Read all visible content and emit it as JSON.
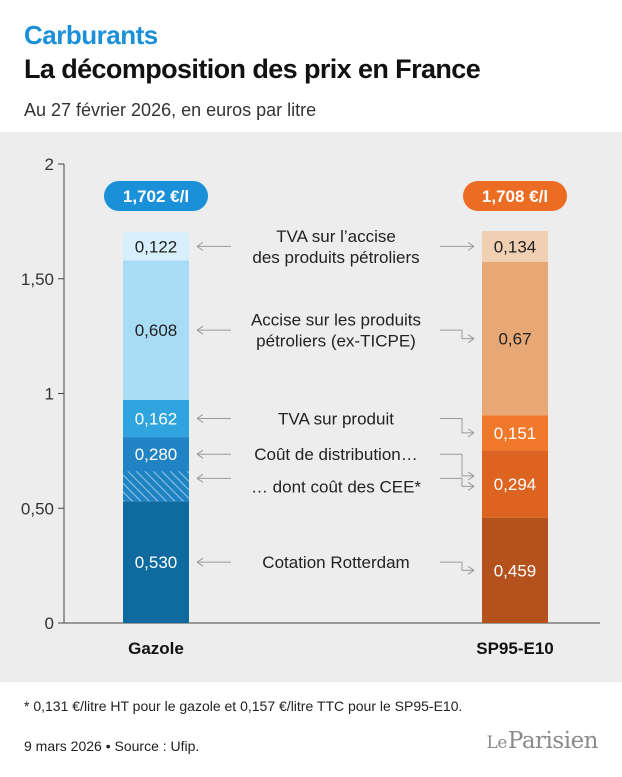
{
  "header": {
    "kicker": "Carburants",
    "title": "La décomposition des prix en France",
    "subtitle": "Au 27 février 2026, en euros par litre"
  },
  "chart_data": {
    "type": "bar",
    "stacked": true,
    "yticks": [
      "0",
      "0,50",
      "1",
      "1,50",
      "2"
    ],
    "ylim": [
      0,
      2
    ],
    "categories": [
      "Gazole",
      "SP95-E10"
    ],
    "totals": [
      {
        "value": 1.702,
        "label": "1,702 €/l",
        "color": "#1a90d8"
      },
      {
        "value": 1.708,
        "label": "1,708 €/l",
        "color": "#ec6c23"
      }
    ],
    "bars": [
      {
        "name": "Gazole",
        "segments": [
          {
            "value": 0.53,
            "label": "0,530",
            "color": "#0f6aa0"
          },
          {
            "value": 0.28,
            "label": "0,280",
            "color": "#2083c3",
            "hatched_value": 0.131
          },
          {
            "value": 0.162,
            "label": "0,162",
            "color": "#30a4de"
          },
          {
            "value": 0.608,
            "label": "0,608",
            "color": "#a8dcf5"
          },
          {
            "value": 0.122,
            "label": "0,122",
            "color": "#d6effb"
          }
        ]
      },
      {
        "name": "SP95-E10",
        "segments": [
          {
            "value": 0.459,
            "label": "0,459",
            "color": "#b5511c"
          },
          {
            "value": 0.294,
            "label": "0,294",
            "color": "#dd6420"
          },
          {
            "value": 0.151,
            "label": "0,151",
            "color": "#f0782a"
          },
          {
            "value": 0.67,
            "label": "0,67",
            "color": "#e8a875"
          },
          {
            "value": 0.134,
            "label": "0,134",
            "color": "#f0cfb2"
          }
        ]
      }
    ],
    "annotations": [
      {
        "lines": [
          "TVA sur l’accise",
          "des produits pétroliers"
        ]
      },
      {
        "lines": [
          "Accise sur les produits",
          "pétroliers (ex-TICPE)"
        ]
      },
      {
        "lines": [
          "TVA sur produit"
        ]
      },
      {
        "lines": [
          "Coût de distribution…"
        ]
      },
      {
        "lines": [
          "… dont coût des CEE*"
        ]
      },
      {
        "lines": [
          "Cotation Rotterdam"
        ]
      }
    ]
  },
  "footer": {
    "footnote": "* 0,131 €/litre HT pour le gazole et 0,157 €/litre TTC pour le SP95-E10.",
    "source": "9 mars 2026 • Source : Ufip.",
    "logo_le": "Le",
    "logo_name": "Parisien"
  }
}
